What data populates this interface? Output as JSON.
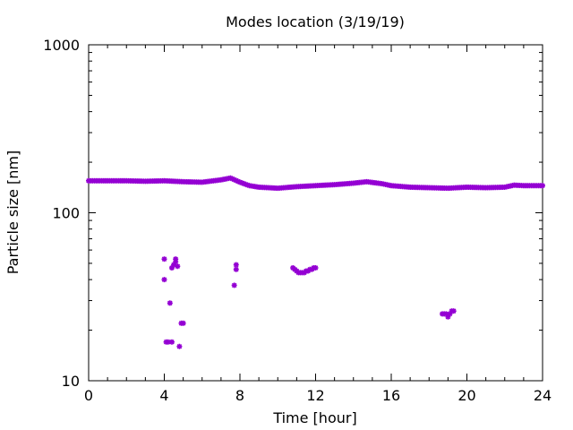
{
  "chart_data": {
    "type": "scatter",
    "title": "Modes location (3/19/19)",
    "xlabel": "Time [hour]",
    "ylabel": "Particle size [nm]",
    "xlim": [
      0,
      24
    ],
    "ylim": [
      10,
      1000
    ],
    "yscale": "log",
    "grid": false,
    "legend": "none",
    "marker_color": "#9400d3",
    "xticks": [
      0,
      4,
      8,
      12,
      16,
      20,
      24
    ],
    "xtick_labels": [
      "0",
      "4",
      "8",
      "12",
      "16",
      "20",
      "24"
    ],
    "yticks": [
      10,
      100,
      1000
    ],
    "ytick_labels": [
      "10",
      "100",
      "1000"
    ],
    "baseline_series": [
      [
        0,
        155
      ],
      [
        1,
        155
      ],
      [
        2,
        155
      ],
      [
        3,
        154
      ],
      [
        4,
        155
      ],
      [
        5,
        153
      ],
      [
        6,
        152
      ],
      [
        7,
        157
      ],
      [
        7.5,
        161
      ],
      [
        8,
        152
      ],
      [
        8.5,
        145
      ],
      [
        9,
        142
      ],
      [
        10,
        140
      ],
      [
        11,
        143
      ],
      [
        12,
        145
      ],
      [
        13,
        147
      ],
      [
        14,
        150
      ],
      [
        14.7,
        153
      ],
      [
        15.5,
        149
      ],
      [
        16,
        145
      ],
      [
        17,
        142
      ],
      [
        18,
        141
      ],
      [
        19,
        140
      ],
      [
        20,
        142
      ],
      [
        21,
        141
      ],
      [
        22,
        142
      ],
      [
        22.5,
        146
      ],
      [
        23,
        145
      ],
      [
        24,
        145
      ]
    ],
    "points": [
      [
        4.0,
        53
      ],
      [
        4.0,
        40
      ],
      [
        4.1,
        17
      ],
      [
        4.2,
        17
      ],
      [
        4.3,
        29
      ],
      [
        4.4,
        17
      ],
      [
        4.4,
        47
      ],
      [
        4.5,
        49
      ],
      [
        4.6,
        53
      ],
      [
        4.6,
        51
      ],
      [
        4.7,
        48
      ],
      [
        4.8,
        16
      ],
      [
        4.9,
        22
      ],
      [
        5.0,
        22
      ],
      [
        7.7,
        37
      ],
      [
        7.8,
        46
      ],
      [
        7.8,
        49
      ],
      [
        10.8,
        47
      ],
      [
        10.9,
        46
      ],
      [
        11.0,
        45
      ],
      [
        11.1,
        44
      ],
      [
        11.2,
        44
      ],
      [
        11.3,
        44
      ],
      [
        11.4,
        44
      ],
      [
        11.5,
        45
      ],
      [
        11.6,
        45
      ],
      [
        11.7,
        46
      ],
      [
        11.8,
        46
      ],
      [
        11.9,
        47
      ],
      [
        12.0,
        47
      ],
      [
        18.7,
        25
      ],
      [
        18.8,
        25
      ],
      [
        18.9,
        25
      ],
      [
        19.0,
        24
      ],
      [
        19.1,
        25
      ],
      [
        19.2,
        26
      ],
      [
        19.3,
        26
      ]
    ]
  }
}
